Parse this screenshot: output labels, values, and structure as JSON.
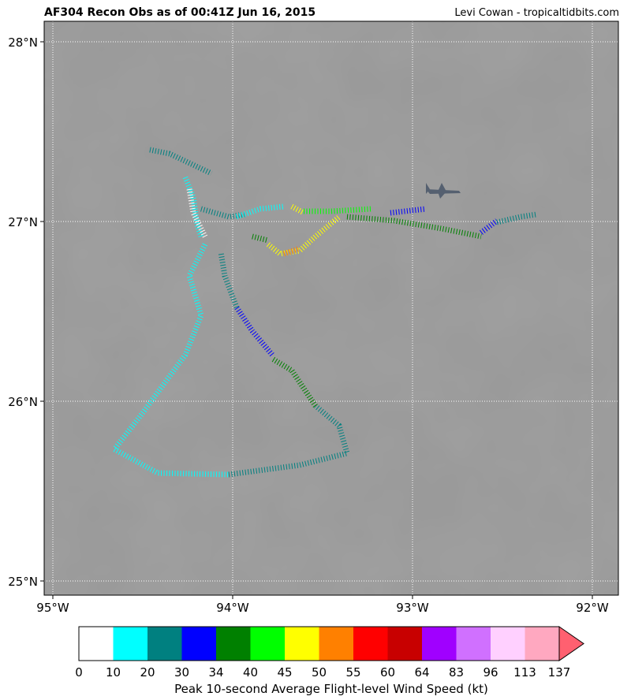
{
  "header": {
    "title": "AF304 Recon Obs as of 00:41Z Jun 16, 2015",
    "credit": "Levi Cowan - tropicaltidbits.com"
  },
  "map": {
    "lon_labels": [
      "95°W",
      "94°W",
      "93°W",
      "92°W"
    ],
    "lat_labels": [
      "28°N",
      "27°N",
      "26°N",
      "25°N"
    ]
  },
  "colorbar": {
    "boundaries": [
      0,
      10,
      20,
      30,
      34,
      40,
      45,
      50,
      55,
      60,
      64,
      83,
      96,
      113,
      137
    ],
    "colors": [
      "#ffffff",
      "#00ffff",
      "#008080",
      "#0000ff",
      "#008000",
      "#00ff00",
      "#ffff00",
      "#ff8000",
      "#ff0000",
      "#c80000",
      "#a000ff",
      "#d070ff",
      "#ffd0ff",
      "#ffa8c0",
      "#ff6070"
    ],
    "label": "Peak 10-second Average Flight-level Wind Speed (kt)"
  }
}
